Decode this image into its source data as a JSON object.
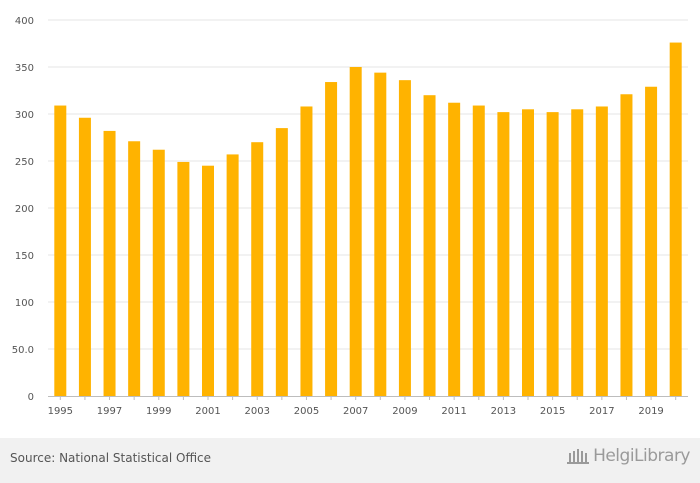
{
  "chart_data": {
    "type": "bar",
    "title": "",
    "xlabel": "",
    "ylabel": "",
    "ylim": [
      0,
      400
    ],
    "y_ticks": [
      "0",
      "50.0",
      "100",
      "150",
      "200",
      "250",
      "300",
      "350",
      "400"
    ],
    "y_tick_values": [
      0,
      50,
      100,
      150,
      200,
      250,
      300,
      350,
      400
    ],
    "categories": [
      "1995",
      "1996",
      "1997",
      "1998",
      "1999",
      "2000",
      "2001",
      "2002",
      "2003",
      "2004",
      "2005",
      "2006",
      "2007",
      "2008",
      "2009",
      "2010",
      "2011",
      "2012",
      "2013",
      "2014",
      "2015",
      "2016",
      "2017",
      "2018",
      "2019",
      "2020"
    ],
    "x_tick_labels": [
      "1995",
      "1997",
      "1999",
      "2001",
      "2003",
      "2005",
      "2007",
      "2009",
      "2011",
      "2013",
      "2015",
      "2017",
      "2019"
    ],
    "values": [
      309,
      296,
      282,
      271,
      262,
      249,
      245,
      257,
      270,
      285,
      308,
      334,
      350,
      344,
      336,
      320,
      312,
      309,
      302,
      305,
      302,
      305,
      308,
      321,
      329,
      376
    ],
    "bar_color": "#ffb300",
    "grid_color": "#e6e6e6"
  },
  "footer": {
    "source": "Source: National Statistical Office",
    "brand_main": "Helgi",
    "brand_lib": "Library",
    "brand_color": "#9a9a9a"
  }
}
